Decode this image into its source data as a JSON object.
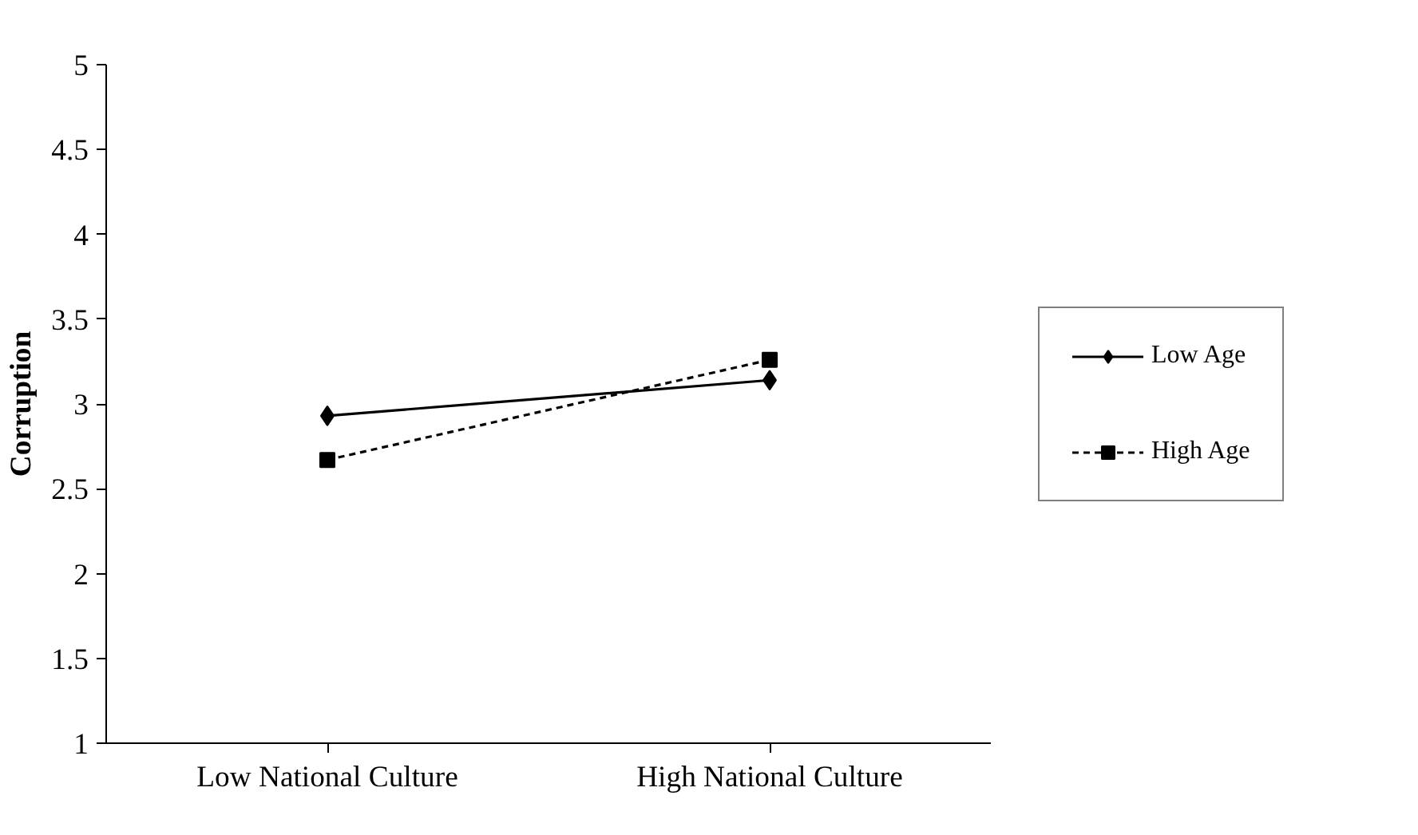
{
  "chart_data": {
    "type": "line",
    "ylabel": "Corruption",
    "categories": [
      "Low National Culture",
      "High National Culture"
    ],
    "series": [
      {
        "name": "Low Age",
        "color": "#000000",
        "values": [
          2.93,
          3.14
        ],
        "marker": "diamond",
        "line_style": "solid"
      },
      {
        "name": "High Age",
        "color": "#000000",
        "values": [
          2.67,
          3.26
        ],
        "marker": "square",
        "line_style": "dashed"
      }
    ],
    "ylim": [
      1,
      5
    ],
    "yticks": [
      1,
      1.5,
      2,
      2.5,
      3,
      3.5,
      4,
      4.5,
      5
    ],
    "grid": false,
    "legend": "right"
  }
}
